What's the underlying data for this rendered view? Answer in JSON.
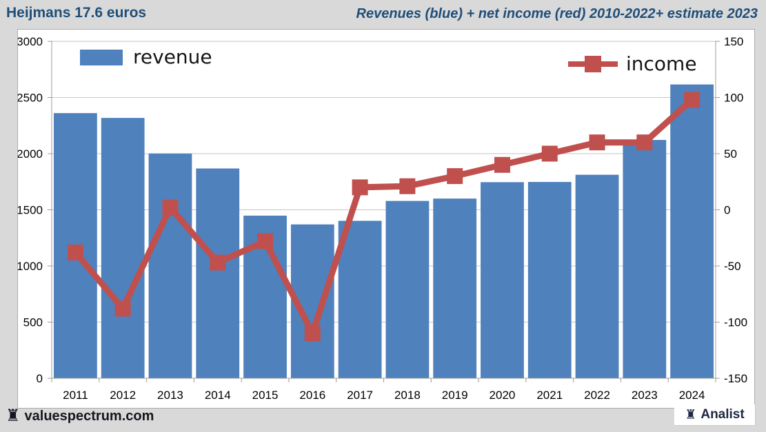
{
  "header": {
    "title_left": "Heijmans 17.6 euros",
    "title_right": "Revenues (blue) + net income (red) 2010-2022+ estimate 2023"
  },
  "chart_data": {
    "type": "bar+line combo",
    "categories": [
      "2011",
      "2012",
      "2013",
      "2014",
      "2015",
      "2016",
      "2017",
      "2018",
      "2019",
      "2020",
      "2021",
      "2022",
      "2023",
      "2024"
    ],
    "series": [
      {
        "name": "revenue",
        "type": "bar",
        "axis": "left",
        "color": "#4f81bd",
        "values": [
          2361,
          2318,
          2001,
          1868,
          1448,
          1370,
          1402,
          1579,
          1600,
          1746,
          1748,
          1812,
          2122,
          2616
        ]
      },
      {
        "name": "income",
        "type": "line",
        "axis": "right",
        "color": "#c0504d",
        "values": [
          -38,
          -88,
          2,
          -47,
          -28,
          -110,
          20,
          21,
          30,
          40,
          50,
          60,
          60,
          98
        ]
      }
    ],
    "left_axis": {
      "min": 0,
      "max": 3000,
      "ticks": [
        0,
        500,
        1000,
        1500,
        2000,
        2500,
        3000
      ]
    },
    "right_axis": {
      "min": -150,
      "max": 150,
      "ticks": [
        -150,
        -100,
        -50,
        0,
        50,
        100,
        150
      ]
    },
    "grid": true,
    "legend": {
      "revenue_label": "revenue",
      "income_label": "income"
    },
    "colors": {
      "bar": "#4f81bd",
      "line": "#c0504d",
      "grid": "#c6c6c6",
      "axis": "#9c9c9c",
      "plot_bg": "#ffffff",
      "page_bg": "#d9d9d9",
      "title": "#1f4e79"
    }
  },
  "footer": {
    "brand": "valuespectrum.com",
    "badge": "Analist"
  },
  "icons": {
    "rook_icon": "♜"
  }
}
